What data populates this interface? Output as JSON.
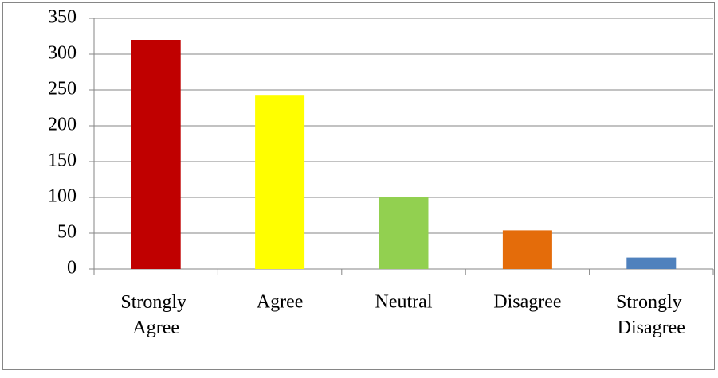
{
  "chart_data": {
    "type": "bar",
    "categories": [
      "Strongly Agree",
      "Agree",
      "Neutral",
      "Disagree",
      "Strongly Disagree"
    ],
    "values": [
      320,
      242,
      100,
      54,
      16
    ],
    "colors": [
      "#c00000",
      "#ffff00",
      "#92d050",
      "#e46c0a",
      "#4f81bd"
    ],
    "ylim": [
      0,
      350
    ],
    "yticks": [
      0,
      50,
      100,
      150,
      200,
      250,
      300,
      350
    ],
    "grid": true
  }
}
